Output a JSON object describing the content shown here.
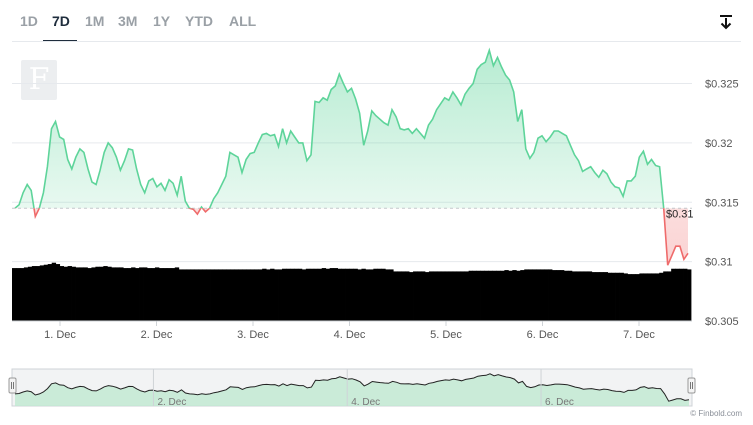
{
  "tabs": [
    "1D",
    "7D",
    "1M",
    "3M",
    "1Y",
    "YTD",
    "ALL"
  ],
  "active_tab": "7D",
  "logo_letter": "F",
  "credit": "© Finbold.com",
  "current_price_label": "$0.31",
  "colors": {
    "up": "#5ed49a",
    "down": "#ef6b6b",
    "volume": "#000000",
    "grid": "#e6e9ed",
    "text": "#555555"
  },
  "icons": {
    "download": "download-icon"
  },
  "chart_data": {
    "type": "area",
    "title": "",
    "xlabel": "",
    "ylabel": "",
    "x_ticks": [
      "1. Dec",
      "2. Dec",
      "3. Dec",
      "4. Dec",
      "5. Dec",
      "6. Dec",
      "7. Dec"
    ],
    "y_ticks": [
      "$0.305",
      "$0.31",
      "$0.315",
      "$0.32",
      "$0.325"
    ],
    "ylim": [
      0.305,
      0.3285
    ],
    "baseline": 0.3145,
    "current_value": 0.31,
    "grid": true,
    "price": [
      0.3145,
      0.3148,
      0.3158,
      0.3165,
      0.316,
      0.3138,
      0.3145,
      0.3158,
      0.318,
      0.3212,
      0.3218,
      0.3205,
      0.3203,
      0.3186,
      0.3178,
      0.3188,
      0.3195,
      0.3192,
      0.3178,
      0.3167,
      0.3165,
      0.3177,
      0.3192,
      0.32,
      0.3196,
      0.3188,
      0.3177,
      0.3185,
      0.3195,
      0.3194,
      0.3178,
      0.3165,
      0.3158,
      0.3168,
      0.317,
      0.3163,
      0.3166,
      0.316,
      0.3169,
      0.3166,
      0.3156,
      0.3172,
      0.3151,
      0.3145,
      0.3144,
      0.314,
      0.3146,
      0.3142,
      0.3145,
      0.3153,
      0.3158,
      0.3165,
      0.3172,
      0.3192,
      0.319,
      0.3188,
      0.3175,
      0.3186,
      0.3191,
      0.3192,
      0.32,
      0.3207,
      0.3208,
      0.3206,
      0.3207,
      0.3197,
      0.3212,
      0.32,
      0.321,
      0.3205,
      0.32,
      0.32,
      0.3185,
      0.319,
      0.3235,
      0.3234,
      0.3238,
      0.3236,
      0.3245,
      0.3248,
      0.3258,
      0.325,
      0.3243,
      0.3246,
      0.3237,
      0.3225,
      0.3198,
      0.321,
      0.3227,
      0.3223,
      0.322,
      0.3217,
      0.3215,
      0.3228,
      0.3222,
      0.3212,
      0.3211,
      0.3212,
      0.3208,
      0.3212,
      0.3208,
      0.3204,
      0.3215,
      0.322,
      0.3228,
      0.3233,
      0.3238,
      0.3236,
      0.3243,
      0.3238,
      0.3232,
      0.3241,
      0.3246,
      0.325,
      0.3262,
      0.3266,
      0.3268,
      0.3278,
      0.3265,
      0.3272,
      0.3264,
      0.3257,
      0.3253,
      0.3243,
      0.3218,
      0.3228,
      0.3195,
      0.3187,
      0.3192,
      0.3204,
      0.3206,
      0.3201,
      0.3205,
      0.321,
      0.321,
      0.3208,
      0.3206,
      0.3198,
      0.319,
      0.3185,
      0.3176,
      0.3178,
      0.318,
      0.3175,
      0.3171,
      0.3177,
      0.3174,
      0.3167,
      0.3163,
      0.3162,
      0.3155,
      0.3168,
      0.3168,
      0.3172,
      0.3188,
      0.3193,
      0.3182,
      0.3186,
      0.3181,
      0.318,
      0.3145,
      0.3097,
      0.3105,
      0.3113,
      0.3113,
      0.3102,
      0.3107
    ],
    "volume_pct": [
      0.79,
      0.79,
      0.79,
      0.8,
      0.81,
      0.82,
      0.82,
      0.83,
      0.84,
      0.85,
      0.87,
      0.85,
      0.82,
      0.81,
      0.82,
      0.81,
      0.8,
      0.8,
      0.8,
      0.79,
      0.8,
      0.81,
      0.81,
      0.82,
      0.81,
      0.8,
      0.8,
      0.8,
      0.79,
      0.79,
      0.8,
      0.79,
      0.8,
      0.8,
      0.79,
      0.79,
      0.8,
      0.79,
      0.79,
      0.79,
      0.79,
      0.8,
      0.77,
      0.77,
      0.77,
      0.77,
      0.77,
      0.77,
      0.77,
      0.77,
      0.77,
      0.77,
      0.77,
      0.77,
      0.77,
      0.77,
      0.77,
      0.77,
      0.77,
      0.77,
      0.77,
      0.77,
      0.77,
      0.78,
      0.77,
      0.78,
      0.77,
      0.77,
      0.78,
      0.78,
      0.78,
      0.78,
      0.78,
      0.77,
      0.78,
      0.78,
      0.78,
      0.78,
      0.79,
      0.78,
      0.79,
      0.79,
      0.78,
      0.78,
      0.78,
      0.78,
      0.78,
      0.77,
      0.78,
      0.77,
      0.77,
      0.78,
      0.78,
      0.78,
      0.77,
      0.77,
      0.74,
      0.74,
      0.74,
      0.74,
      0.73,
      0.74,
      0.74,
      0.74,
      0.73,
      0.74,
      0.74,
      0.74,
      0.74,
      0.74,
      0.74,
      0.74,
      0.74,
      0.74,
      0.74,
      0.75,
      0.75,
      0.75,
      0.75,
      0.75,
      0.75,
      0.75,
      0.75,
      0.75,
      0.76,
      0.75,
      0.76,
      0.75,
      0.76,
      0.77,
      0.77,
      0.77,
      0.77,
      0.77,
      0.77,
      0.77,
      0.76,
      0.76,
      0.76,
      0.75,
      0.75,
      0.74,
      0.74,
      0.74,
      0.74,
      0.74,
      0.73,
      0.73,
      0.73,
      0.73,
      0.72,
      0.72,
      0.72,
      0.72,
      0.71,
      0.7,
      0.7,
      0.7,
      0.71,
      0.71,
      0.71,
      0.71,
      0.71,
      0.72,
      0.74,
      0.74,
      0.78,
      0.78,
      0.78,
      0.78,
      0.77
    ],
    "navigator_ticks": [
      "2. Dec",
      "4. Dec",
      "6. Dec"
    ]
  }
}
